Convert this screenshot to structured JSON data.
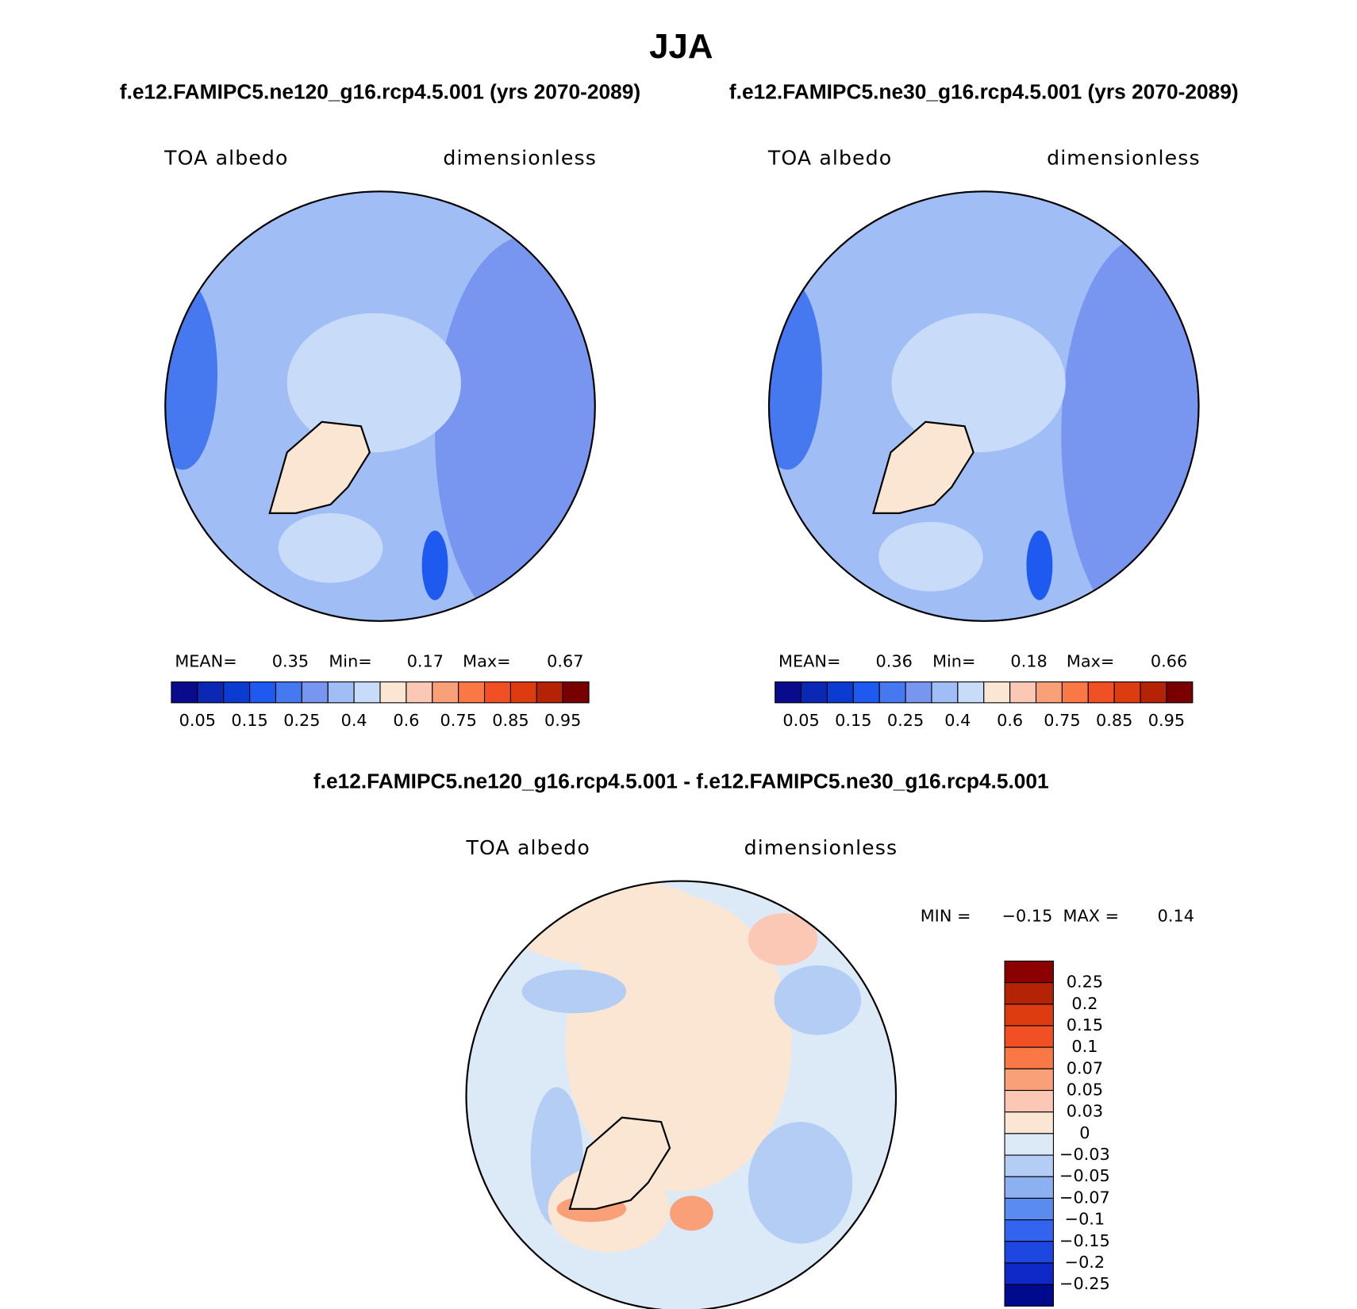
{
  "header": {
    "title": "JJA",
    "subtitles": [
      "f.e12.FAMIPC5.ne120_g16.rcp4.5.001 (yrs 2070-2089)",
      "f.e12.FAMIPC5.ne30_g16.rcp4.5.001 (yrs 2070-2089)"
    ]
  },
  "panels": [
    {
      "left_label": "TOA albedo",
      "right_label": "dimensionless",
      "stats": [
        {
          "label": "MEAN=",
          "value": "0.35"
        },
        {
          "label": "Min=",
          "value": "0.17"
        },
        {
          "label": "Max=",
          "value": "0.67"
        }
      ],
      "colorbar": {
        "colors": [
          "#0a0a8c",
          "#0a28b4",
          "#0a3cd2",
          "#1e5af0",
          "#4678f0",
          "#7896f0",
          "#a0bef5",
          "#c8dcfa",
          "#fae6d2",
          "#fac8b4",
          "#faa078",
          "#fa7846",
          "#f05023",
          "#dc3c0f",
          "#b42305",
          "#780000"
        ],
        "labels": [
          "0.05",
          "0.15",
          "0.25",
          "0.4",
          "0.6",
          "0.75",
          "0.85",
          "0.95"
        ]
      }
    },
    {
      "left_label": "TOA albedo",
      "right_label": "dimensionless",
      "stats": [
        {
          "label": "MEAN=",
          "value": "0.36"
        },
        {
          "label": "Min=",
          "value": "0.18"
        },
        {
          "label": "Max=",
          "value": "0.66"
        }
      ],
      "colorbar": {
        "colors": [
          "#0a0a8c",
          "#0a28b4",
          "#0a3cd2",
          "#1e5af0",
          "#4678f0",
          "#7896f0",
          "#a0bef5",
          "#c8dcfa",
          "#fae6d2",
          "#fac8b4",
          "#faa078",
          "#fa7846",
          "#f05023",
          "#dc3c0f",
          "#b42305",
          "#780000"
        ],
        "labels": [
          "0.05",
          "0.15",
          "0.25",
          "0.4",
          "0.6",
          "0.75",
          "0.85",
          "0.95"
        ]
      }
    }
  ],
  "difference": {
    "title": "f.e12.FAMIPC5.ne120_g16.rcp4.5.001 - f.e12.FAMIPC5.ne30_g16.rcp4.5.001",
    "left_label": "TOA albedo",
    "right_label": "dimensionless",
    "stats": [
      {
        "label": "MIN =",
        "value": "−0.15"
      },
      {
        "label": "MAX =",
        "value": "0.14"
      }
    ],
    "colorbar": {
      "colors": [
        "#8b0000",
        "#b42305",
        "#dc3c0f",
        "#f05023",
        "#fa7846",
        "#faa078",
        "#fac8b4",
        "#fae6d2",
        "#dceaf8",
        "#b4cdf5",
        "#8cb0f0",
        "#5a8cf0",
        "#3264f0",
        "#1e46e1",
        "#0f28c8",
        "#000a8c"
      ],
      "labels": [
        "0.25",
        "0.2",
        "0.15",
        "0.1",
        "0.07",
        "0.05",
        "0.03",
        "0",
        "−0.03",
        "−0.05",
        "−0.07",
        "−0.1",
        "−0.15",
        "−0.2",
        "−0.25"
      ]
    }
  }
}
